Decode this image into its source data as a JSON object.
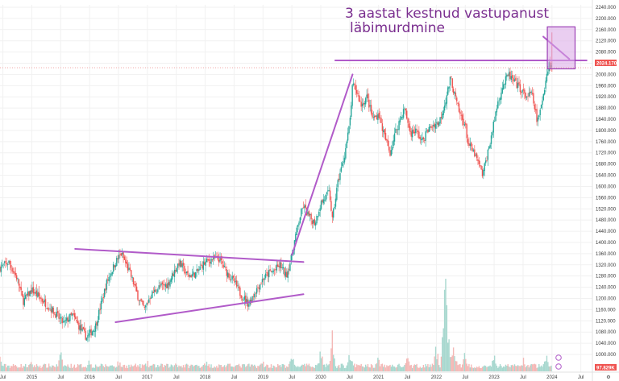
{
  "chart_data": {
    "type": "candlestick",
    "annotation": [
      "3 aastat kestnud vastupanust",
      "läbimurdmine"
    ],
    "last_price_label": "2024.170",
    "volume_badge": "97.829K",
    "ylim": [
      960,
      2240
    ],
    "y_ticks": [
      "2240.000",
      "2200.000",
      "2160.000",
      "2120.000",
      "2080.000",
      "2040.000",
      "2000.000",
      "1960.000",
      "1920.000",
      "1880.000",
      "1840.000",
      "1800.000",
      "1760.000",
      "1720.000",
      "1680.000",
      "1640.000",
      "1600.000",
      "1560.000",
      "1520.000",
      "1480.000",
      "1440.000",
      "1400.000",
      "1360.000",
      "1320.000",
      "1280.000",
      "1240.000",
      "1200.000",
      "1160.000",
      "1120.000",
      "1080.000",
      "1040.000",
      "1000.000"
    ],
    "x_ticks": [
      "Jul",
      "2015",
      "Jul",
      "2016",
      "Jul",
      "2017",
      "Jul",
      "2018",
      "Jul",
      "2019",
      "Jul",
      "2020",
      "Jul",
      "2021",
      "Jul",
      "2022",
      "Jul",
      "2023",
      "Jul",
      "2024",
      "Jul"
    ],
    "x_tick_dates": [
      2014.5,
      2015.0,
      2015.5,
      2016.0,
      2016.5,
      2017.0,
      2017.5,
      2018.0,
      2018.5,
      2019.0,
      2019.5,
      2020.0,
      2020.5,
      2021.0,
      2021.5,
      2022.0,
      2022.5,
      2023.0,
      2023.5,
      2024.0,
      2024.5
    ],
    "xlim": [
      2014.45,
      2024.7
    ],
    "price_path": [
      [
        2014.45,
        1310
      ],
      [
        2014.6,
        1330
      ],
      [
        2014.75,
        1270
      ],
      [
        2014.85,
        1190
      ],
      [
        2015.0,
        1230
      ],
      [
        2015.15,
        1200
      ],
      [
        2015.35,
        1160
      ],
      [
        2015.55,
        1110
      ],
      [
        2015.7,
        1140
      ],
      [
        2015.85,
        1090
      ],
      [
        2015.95,
        1060
      ],
      [
        2016.1,
        1100
      ],
      [
        2016.2,
        1180
      ],
      [
        2016.3,
        1260
      ],
      [
        2016.45,
        1330
      ],
      [
        2016.55,
        1360
      ],
      [
        2016.7,
        1290
      ],
      [
        2016.85,
        1200
      ],
      [
        2016.95,
        1160
      ],
      [
        2017.05,
        1210
      ],
      [
        2017.2,
        1240
      ],
      [
        2017.35,
        1250
      ],
      [
        2017.45,
        1290
      ],
      [
        2017.55,
        1330
      ],
      [
        2017.7,
        1280
      ],
      [
        2017.85,
        1290
      ],
      [
        2017.95,
        1320
      ],
      [
        2018.1,
        1340
      ],
      [
        2018.25,
        1340
      ],
      [
        2018.35,
        1300
      ],
      [
        2018.5,
        1260
      ],
      [
        2018.6,
        1220
      ],
      [
        2018.75,
        1180
      ],
      [
        2018.85,
        1220
      ],
      [
        2019.0,
        1270
      ],
      [
        2019.1,
        1290
      ],
      [
        2019.2,
        1300
      ],
      [
        2019.3,
        1320
      ],
      [
        2019.4,
        1280
      ],
      [
        2019.5,
        1350
      ],
      [
        2019.55,
        1410
      ],
      [
        2019.65,
        1500
      ],
      [
        2019.7,
        1530
      ],
      [
        2019.8,
        1490
      ],
      [
        2019.9,
        1470
      ],
      [
        2020.0,
        1540
      ],
      [
        2020.15,
        1580
      ],
      [
        2020.2,
        1480
      ],
      [
        2020.3,
        1620
      ],
      [
        2020.4,
        1700
      ],
      [
        2020.5,
        1820
      ],
      [
        2020.55,
        1960
      ],
      [
        2020.6,
        1950
      ],
      [
        2020.7,
        1890
      ],
      [
        2020.8,
        1920
      ],
      [
        2020.9,
        1840
      ],
      [
        2021.0,
        1860
      ],
      [
        2021.1,
        1780
      ],
      [
        2021.2,
        1720
      ],
      [
        2021.3,
        1800
      ],
      [
        2021.45,
        1880
      ],
      [
        2021.55,
        1790
      ],
      [
        2021.65,
        1800
      ],
      [
        2021.75,
        1760
      ],
      [
        2021.85,
        1800
      ],
      [
        2021.95,
        1820
      ],
      [
        2022.05,
        1830
      ],
      [
        2022.15,
        1900
      ],
      [
        2022.25,
        1990
      ],
      [
        2022.3,
        1940
      ],
      [
        2022.4,
        1860
      ],
      [
        2022.5,
        1820
      ],
      [
        2022.55,
        1750
      ],
      [
        2022.65,
        1720
      ],
      [
        2022.75,
        1670
      ],
      [
        2022.8,
        1640
      ],
      [
        2022.9,
        1730
      ],
      [
        2023.0,
        1830
      ],
      [
        2023.05,
        1890
      ],
      [
        2023.15,
        1960
      ],
      [
        2023.25,
        2000
      ],
      [
        2023.35,
        1970
      ],
      [
        2023.45,
        1950
      ],
      [
        2023.55,
        1920
      ],
      [
        2023.65,
        1930
      ],
      [
        2023.7,
        1880
      ],
      [
        2023.75,
        1830
      ],
      [
        2023.8,
        1870
      ],
      [
        2023.9,
        1990
      ],
      [
        2023.95,
        2040
      ],
      [
        2024.0,
        2024
      ]
    ],
    "volume_spikes": [
      [
        2014.45,
        18
      ],
      [
        2015.0,
        12
      ],
      [
        2015.5,
        22
      ],
      [
        2016.0,
        15
      ],
      [
        2016.5,
        14
      ],
      [
        2017.0,
        12
      ],
      [
        2017.5,
        14
      ],
      [
        2018.0,
        16
      ],
      [
        2018.5,
        12
      ],
      [
        2019.0,
        14
      ],
      [
        2019.5,
        20
      ],
      [
        2020.0,
        28
      ],
      [
        2020.2,
        45
      ],
      [
        2020.5,
        25
      ],
      [
        2021.0,
        18
      ],
      [
        2021.5,
        16
      ],
      [
        2022.0,
        30
      ],
      [
        2022.15,
        120
      ],
      [
        2022.2,
        60
      ],
      [
        2022.3,
        35
      ],
      [
        2022.5,
        25
      ],
      [
        2023.0,
        18
      ],
      [
        2023.5,
        16
      ],
      [
        2023.9,
        22
      ]
    ]
  },
  "colors": {
    "up": "#26a69a",
    "down": "#ef5350",
    "trendline": "#b15bc9",
    "box_fill": "#d9a6e6",
    "box_stroke": "#9b3fb5",
    "price_label_bg": "#ef5350",
    "volume_up": "#a8d8cf",
    "volume_down": "#f4b8b6",
    "annotation": "#7a2e8f"
  }
}
